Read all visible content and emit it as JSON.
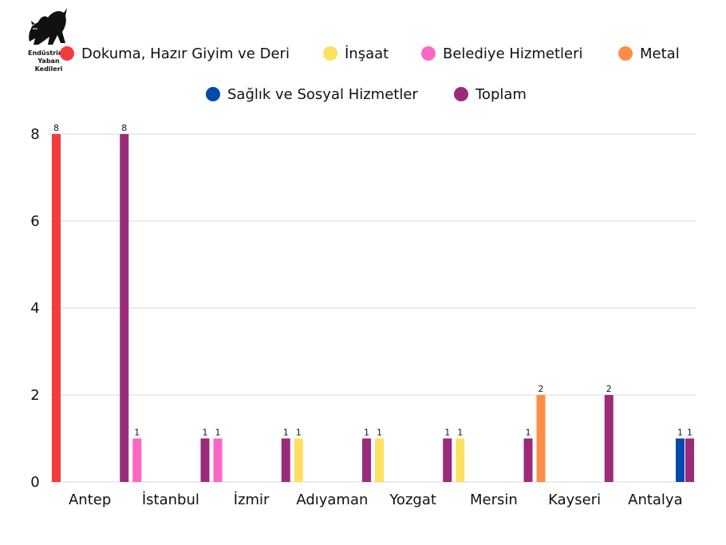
{
  "logo": {
    "lines": [
      "Endüstrinin",
      "Yaban",
      "Kedileri"
    ]
  },
  "chart_data": {
    "type": "bar",
    "categories": [
      "Antep",
      "İstanbul",
      "İzmir",
      "Adıyaman",
      "Yozgat",
      "Mersin",
      "Kayseri",
      "Antalya"
    ],
    "series": [
      {
        "name": "Dokuma, Hazır Giyim ve Deri",
        "color": "#f53a3d",
        "values": [
          8,
          null,
          null,
          null,
          null,
          null,
          null,
          null
        ]
      },
      {
        "name": "İnşaat",
        "color": "#fde15f",
        "values": [
          null,
          null,
          null,
          1,
          1,
          1,
          null,
          null
        ]
      },
      {
        "name": "Belediye Hizmetleri",
        "color": "#ff66c4",
        "values": [
          null,
          1,
          1,
          null,
          null,
          null,
          null,
          null
        ]
      },
      {
        "name": "Metal",
        "color": "#fb8d49",
        "values": [
          null,
          null,
          null,
          null,
          null,
          null,
          2,
          null
        ]
      },
      {
        "name": "Sağlık ve Sosyal Hizmetler",
        "color": "#004aad",
        "values": [
          null,
          null,
          null,
          null,
          null,
          null,
          null,
          1
        ]
      },
      {
        "name": "Toplam",
        "color": "#9a2a7b",
        "values": [
          8,
          1,
          1,
          1,
          1,
          1,
          2,
          1
        ]
      }
    ],
    "yticks": [
      0,
      2,
      4,
      6,
      8
    ],
    "ylim": [
      0,
      8
    ],
    "grid": true,
    "legend": "top"
  }
}
